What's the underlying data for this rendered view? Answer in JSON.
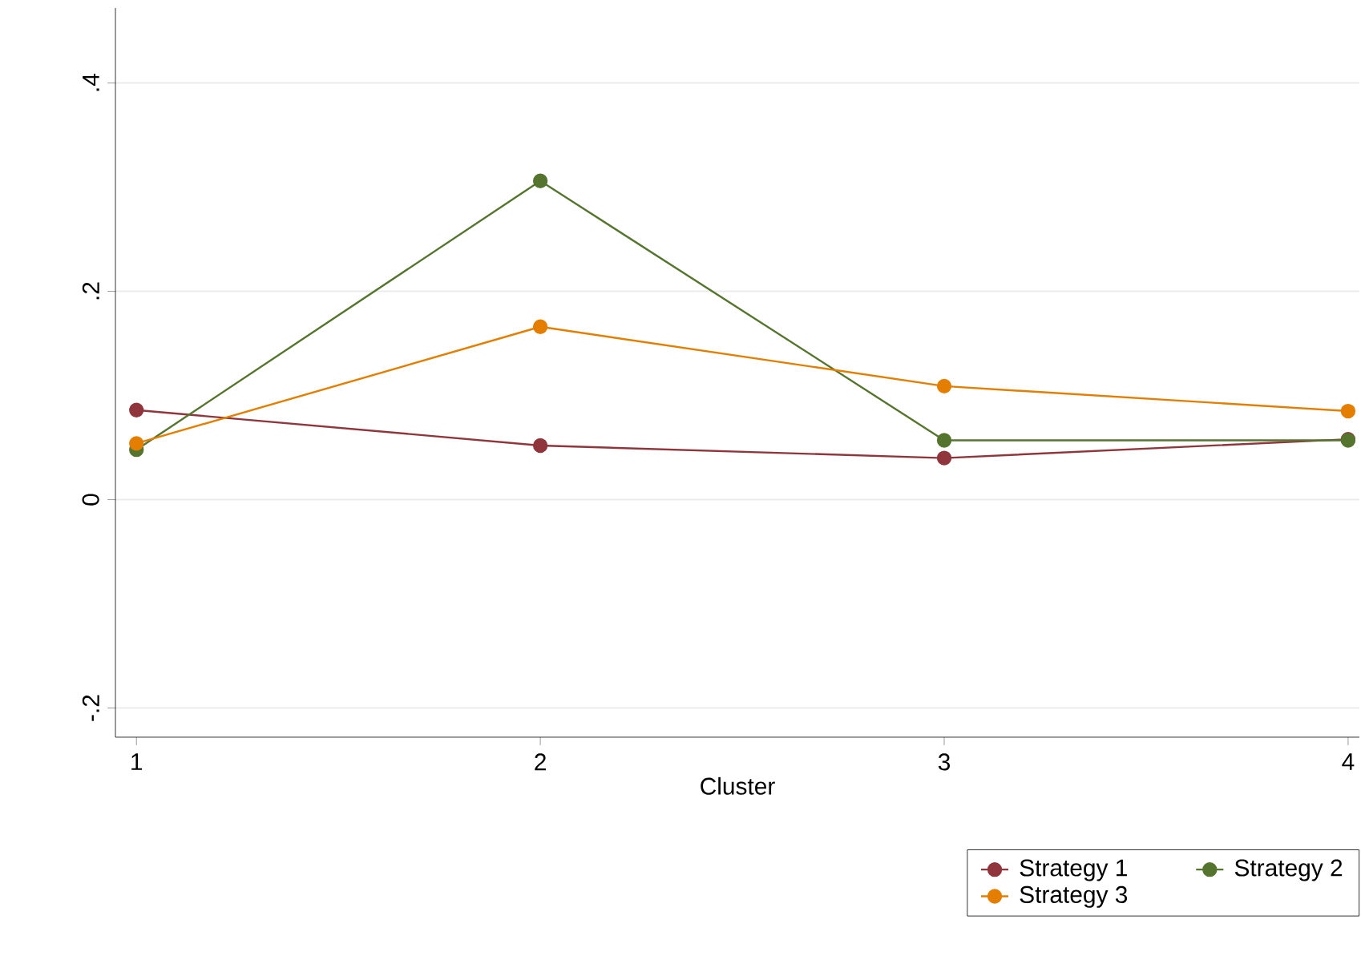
{
  "chart_data": {
    "type": "line",
    "xlabel": "Cluster",
    "x": [
      1,
      2,
      3,
      4
    ],
    "xlim": [
      0.948,
      4.028
    ],
    "xticks": [
      1,
      2,
      3,
      4
    ],
    "ylim": [
      -0.228,
      0.472
    ],
    "yticks": [
      {
        "value": -0.2,
        "label": "-.2"
      },
      {
        "value": 0,
        "label": "0"
      },
      {
        "value": 0.2,
        "label": ".2"
      },
      {
        "value": 0.4,
        "label": ".4"
      }
    ],
    "series": [
      {
        "name": "Strategy 1",
        "color": "#90353b",
        "values": [
          0.086,
          0.052,
          0.04,
          0.058
        ]
      },
      {
        "name": "Strategy 2",
        "color": "#55752f",
        "values": [
          0.048,
          0.306,
          0.057,
          0.057
        ]
      },
      {
        "name": "Strategy 3",
        "color": "#e37e00",
        "values": [
          0.054,
          0.166,
          0.109,
          0.085
        ]
      }
    ],
    "grid": "y",
    "legend": "bottom right",
    "marker": "circle",
    "line_style": "solid"
  }
}
